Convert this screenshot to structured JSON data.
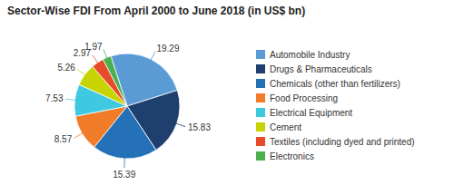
{
  "chart_data": {
    "type": "pie",
    "title": "Sector-Wise FDI From April 2000 to June 2018 (in US$ bn)",
    "categories": [
      "Automobile Industry",
      "Drugs & Pharmaceuticals",
      "Chemicals (other than fertilizers)",
      "Food Processing",
      "Electrical Equipment",
      "Cement",
      "Textiles (including dyed and printed)",
      "Electronics"
    ],
    "values": [
      19.29,
      15.83,
      15.39,
      8.57,
      7.53,
      5.26,
      2.97,
      1.97
    ],
    "colors": [
      "#5B9BD5",
      "#1F3F6E",
      "#2471B8",
      "#F07B28",
      "#3EC9E0",
      "#C8D400",
      "#E84B28",
      "#4CAF50"
    ],
    "data_labels": true,
    "legend": "right"
  }
}
